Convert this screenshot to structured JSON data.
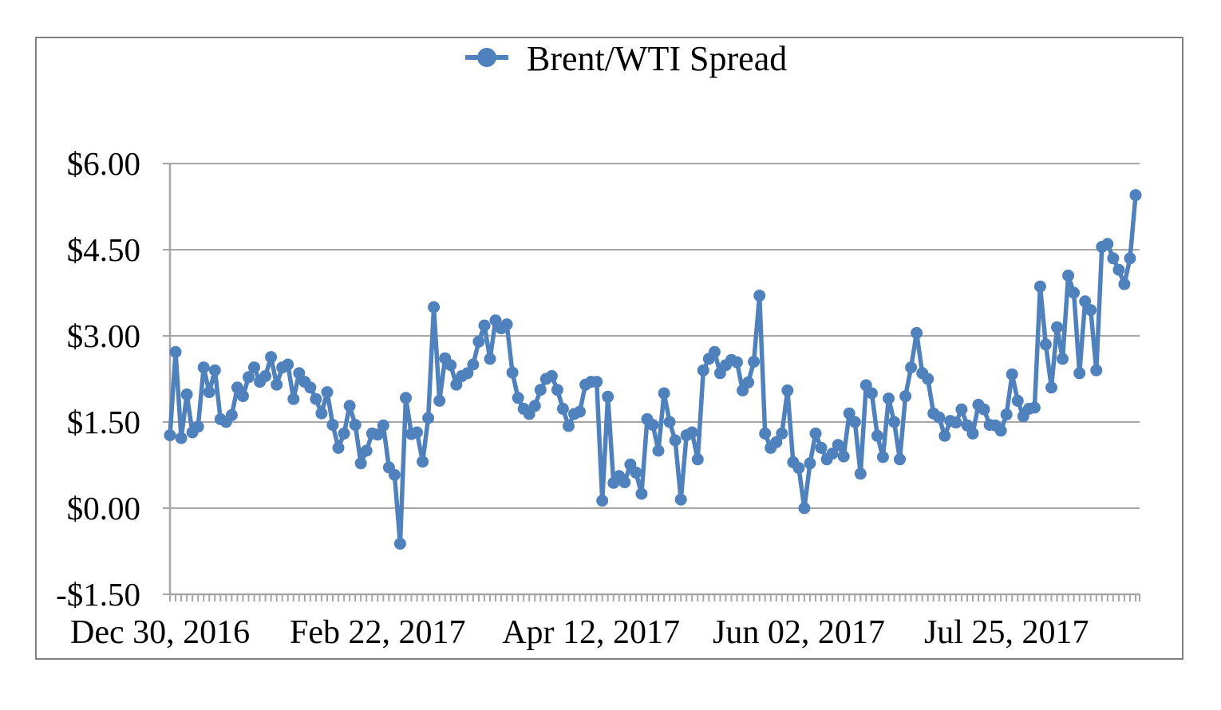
{
  "chart_data": {
    "type": "line",
    "title": "Brent/WTI Spread",
    "legend": {
      "label": "Brent/WTI Spread",
      "position": "top-center",
      "marker": "circle-on-line"
    },
    "xlabel": "",
    "ylabel": "",
    "grid": true,
    "y_ticks": [
      {
        "label": "$6.00",
        "value": 6.0
      },
      {
        "label": "$4.50",
        "value": 4.5
      },
      {
        "label": "$3.00",
        "value": 3.0
      },
      {
        "label": "$1.50",
        "value": 1.5
      },
      {
        "label": "$0.00",
        "value": 0.0
      },
      {
        "label": "-$1.50",
        "value": -1.5
      }
    ],
    "ylim": [
      -1.5,
      6.0
    ],
    "x_tick_labels": [
      {
        "label": "Dec 30, 2016",
        "index": 0
      },
      {
        "label": "Feb 22, 2017",
        "index": 37
      },
      {
        "label": "Apr 12, 2017",
        "index": 75
      },
      {
        "label": "Jun 02, 2017",
        "index": 112
      },
      {
        "label": "Jul 25, 2017",
        "index": 149
      }
    ],
    "x_axis_note": "daily points with one minor tick per point",
    "colors": {
      "series": "#4f81bd",
      "gridline": "#a6a6a6",
      "axis": "#a6a6a6",
      "border": "#808080",
      "text": "#000000",
      "background": "#ffffff"
    },
    "series": [
      {
        "name": "Brent/WTI Spread",
        "values": [
          1.27,
          2.72,
          1.22,
          1.98,
          1.32,
          1.42,
          2.45,
          2.02,
          2.4,
          1.55,
          1.5,
          1.62,
          2.1,
          1.95,
          2.28,
          2.45,
          2.2,
          2.3,
          2.63,
          2.15,
          2.45,
          2.5,
          1.9,
          2.35,
          2.2,
          2.1,
          1.9,
          1.65,
          2.02,
          1.45,
          1.05,
          1.3,
          1.78,
          1.45,
          0.78,
          1.0,
          1.3,
          1.28,
          1.44,
          0.71,
          0.58,
          -0.62,
          1.92,
          1.29,
          1.32,
          0.81,
          1.57,
          3.5,
          1.87,
          2.61,
          2.49,
          2.15,
          2.3,
          2.35,
          2.5,
          2.9,
          3.18,
          2.6,
          3.27,
          3.13,
          3.2,
          2.36,
          1.92,
          1.73,
          1.64,
          1.78,
          2.06,
          2.25,
          2.3,
          2.06,
          1.73,
          1.43,
          1.64,
          1.68,
          2.15,
          2.2,
          2.2,
          0.13,
          1.94,
          0.44,
          0.56,
          0.45,
          0.76,
          0.62,
          0.25,
          1.55,
          1.45,
          1.0,
          2.0,
          1.5,
          1.18,
          0.15,
          1.27,
          1.32,
          0.85,
          2.4,
          2.6,
          2.72,
          2.35,
          2.49,
          2.58,
          2.54,
          2.05,
          2.19,
          2.55,
          3.7,
          1.3,
          1.05,
          1.15,
          1.3,
          2.05,
          0.8,
          0.7,
          0.0,
          0.78,
          1.3,
          1.05,
          0.85,
          0.95,
          1.1,
          0.9,
          1.65,
          1.5,
          0.6,
          2.14,
          2.0,
          1.26,
          0.89,
          1.91,
          1.5,
          0.85,
          1.95,
          2.45,
          3.05,
          2.35,
          2.25,
          1.65,
          1.58,
          1.26,
          1.52,
          1.49,
          1.72,
          1.44,
          1.3,
          1.8,
          1.72,
          1.45,
          1.44,
          1.35,
          1.63,
          2.33,
          1.87,
          1.6,
          1.73,
          1.75,
          3.86,
          2.85,
          2.1,
          3.15,
          2.6,
          4.05,
          3.75,
          2.35,
          3.6,
          3.45,
          2.4,
          4.55,
          4.6,
          4.35,
          4.15,
          3.9,
          4.35,
          5.45
        ]
      }
    ]
  }
}
